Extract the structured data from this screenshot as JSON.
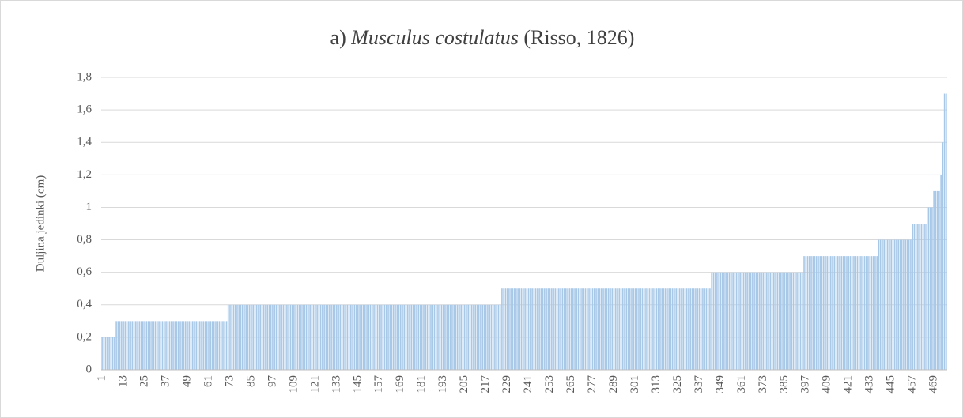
{
  "chart_data": {
    "type": "bar",
    "title": [
      "a)",
      "Musculus costulatus",
      "(Risso, 1826)"
    ],
    "y_label": "Duljina jedinki (cm)",
    "color": "#a8c8e8",
    "ylim": [
      0,
      1.8
    ],
    "yticks": [
      0,
      {
        "value": 0.2,
        "label": "0,2"
      },
      {
        "value": 0.4,
        "label": "0,4"
      },
      {
        "value": 0.6,
        "label": "0,6"
      },
      {
        "value": 0.8,
        "label": "0,8"
      },
      1,
      {
        "value": 1.2,
        "label": "1,2"
      },
      {
        "value": 1.4,
        "label": "1,4"
      },
      {
        "value": 1.6,
        "label": "1,6"
      },
      {
        "value": 1.8,
        "label": "1,8"
      }
    ],
    "grid": true,
    "categories": [
      "1",
      null,
      null,
      null,
      null,
      null,
      null,
      null,
      null,
      null,
      null,
      null,
      "13",
      null,
      null,
      null,
      null,
      null,
      null,
      null,
      null,
      null,
      null,
      null,
      "25",
      null,
      null,
      null,
      null,
      null,
      null,
      null,
      null,
      null,
      null,
      null,
      "37",
      null,
      null,
      null,
      null,
      null,
      null,
      null,
      null,
      null,
      null,
      null,
      "49",
      null,
      null,
      null,
      null,
      null,
      null,
      null,
      null,
      null,
      null,
      null,
      "61",
      null,
      null,
      null,
      null,
      null,
      null,
      null,
      null,
      null,
      null,
      null,
      "73",
      null,
      null,
      null,
      null,
      null,
      null,
      null,
      null,
      null,
      null,
      null,
      "85",
      null,
      null,
      null,
      null,
      null,
      null,
      null,
      null,
      null,
      null,
      null,
      "97",
      null,
      null,
      null,
      null,
      null,
      null,
      null,
      null,
      null,
      null,
      null,
      "109",
      null,
      null,
      null,
      null,
      null,
      null,
      null,
      null,
      null,
      null,
      null,
      "121",
      null,
      null,
      null,
      null,
      null,
      null,
      null,
      null,
      null,
      null,
      null,
      "133",
      null,
      null,
      null,
      null,
      null,
      null,
      null,
      null,
      null,
      null,
      null,
      "145",
      null,
      null,
      null,
      null,
      null,
      null,
      null,
      null,
      null,
      null,
      null,
      "157",
      null,
      null,
      null,
      null,
      null,
      null,
      null,
      null,
      null,
      null,
      null,
      "169",
      null,
      null,
      null,
      null,
      null,
      null,
      null,
      null,
      null,
      null,
      null,
      "181",
      null,
      null,
      null,
      null,
      null,
      null,
      null,
      null,
      null,
      null,
      null,
      "193",
      null,
      null,
      null,
      null,
      null,
      null,
      null,
      null,
      null,
      null,
      null,
      "205",
      null,
      null,
      null,
      null,
      null,
      null,
      null,
      null,
      null,
      null,
      null,
      "217",
      null,
      null,
      null,
      null,
      null,
      null,
      null,
      null,
      null,
      null,
      null,
      "229",
      null,
      null,
      null,
      null,
      null,
      null,
      null,
      null,
      null,
      null,
      null,
      "241",
      null,
      null,
      null,
      null,
      null,
      null,
      null,
      null,
      null,
      null,
      null,
      "253",
      null,
      null,
      null,
      null,
      null,
      null,
      null,
      null,
      null,
      null,
      null,
      "265",
      null,
      null,
      null,
      null,
      null,
      null,
      null,
      null,
      null,
      null,
      null,
      "277",
      null,
      null,
      null,
      null,
      null,
      null,
      null,
      null,
      null,
      null,
      null,
      "289",
      null,
      null,
      null,
      null,
      null,
      null,
      null,
      null,
      null,
      null,
      null,
      "301",
      null,
      null,
      null,
      null,
      null,
      null,
      null,
      null,
      null,
      null,
      null,
      "313",
      null,
      null,
      null,
      null,
      null,
      null,
      null,
      null,
      null,
      null,
      null,
      "325",
      null,
      null,
      null,
      null,
      null,
      null,
      null,
      null,
      null,
      null,
      null,
      "337",
      null,
      null,
      null,
      null,
      null,
      null,
      null,
      null,
      null,
      null,
      null,
      "349",
      null,
      null,
      null,
      null,
      null,
      null,
      null,
      null,
      null,
      null,
      null,
      "361",
      null,
      null,
      null,
      null,
      null,
      null,
      null,
      null,
      null,
      null,
      null,
      "373",
      null,
      null,
      null,
      null,
      null,
      null,
      null,
      null,
      null,
      null,
      null,
      "385",
      null,
      null,
      null,
      null,
      null,
      null,
      null,
      null,
      null,
      null,
      null,
      "397",
      null,
      null,
      null,
      null,
      null,
      null,
      null,
      null,
      null,
      null,
      null,
      "409",
      null,
      null,
      null,
      null,
      null,
      null,
      null,
      null,
      null,
      null,
      null,
      "421",
      null,
      null,
      null,
      null,
      null,
      null,
      null,
      null,
      null,
      null,
      null,
      "433",
      null,
      null,
      null,
      null,
      null,
      null,
      null,
      null,
      null,
      null,
      null,
      "445",
      null,
      null,
      null,
      null,
      null,
      null,
      null,
      null,
      null,
      null,
      null,
      "457",
      null,
      null,
      null,
      null,
      null,
      null,
      null,
      null,
      null,
      null,
      null,
      "469",
      null,
      null,
      null,
      null,
      null,
      null,
      null
    ],
    "values": [
      0.2,
      0.2,
      0.2,
      0.2,
      0.2,
      0.2,
      0.2,
      0.2,
      0.3,
      0.3,
      0.3,
      0.3,
      0.3,
      0.3,
      0.3,
      0.3,
      0.3,
      0.3,
      0.3,
      0.3,
      0.3,
      0.3,
      0.3,
      0.3,
      0.3,
      0.3,
      0.3,
      0.3,
      0.3,
      0.3,
      0.3,
      0.3,
      0.3,
      0.3,
      0.3,
      0.3,
      0.3,
      0.3,
      0.3,
      0.3,
      0.3,
      0.3,
      0.3,
      0.3,
      0.3,
      0.3,
      0.3,
      0.3,
      0.3,
      0.3,
      0.3,
      0.3,
      0.3,
      0.3,
      0.3,
      0.3,
      0.3,
      0.3,
      0.3,
      0.3,
      0.3,
      0.3,
      0.3,
      0.3,
      0.3,
      0.3,
      0.3,
      0.3,
      0.3,
      0.3,
      0.3,
      0.4,
      0.4,
      0.4,
      0.4,
      0.4,
      0.4,
      0.4,
      0.4,
      0.4,
      0.4,
      0.4,
      0.4,
      0.4,
      0.4,
      0.4,
      0.4,
      0.4,
      0.4,
      0.4,
      0.4,
      0.4,
      0.4,
      0.4,
      0.4,
      0.4,
      0.4,
      0.4,
      0.4,
      0.4,
      0.4,
      0.4,
      0.4,
      0.4,
      0.4,
      0.4,
      0.4,
      0.4,
      0.4,
      0.4,
      0.4,
      0.4,
      0.4,
      0.4,
      0.4,
      0.4,
      0.4,
      0.4,
      0.4,
      0.4,
      0.4,
      0.4,
      0.4,
      0.4,
      0.4,
      0.4,
      0.4,
      0.4,
      0.4,
      0.4,
      0.4,
      0.4,
      0.4,
      0.4,
      0.4,
      0.4,
      0.4,
      0.4,
      0.4,
      0.4,
      0.4,
      0.4,
      0.4,
      0.4,
      0.4,
      0.4,
      0.4,
      0.4,
      0.4,
      0.4,
      0.4,
      0.4,
      0.4,
      0.4,
      0.4,
      0.4,
      0.4,
      0.4,
      0.4,
      0.4,
      0.4,
      0.4,
      0.4,
      0.4,
      0.4,
      0.4,
      0.4,
      0.4,
      0.4,
      0.4,
      0.4,
      0.4,
      0.4,
      0.4,
      0.4,
      0.4,
      0.4,
      0.4,
      0.4,
      0.4,
      0.4,
      0.4,
      0.4,
      0.4,
      0.4,
      0.4,
      0.4,
      0.4,
      0.4,
      0.4,
      0.4,
      0.4,
      0.4,
      0.4,
      0.4,
      0.4,
      0.4,
      0.4,
      0.4,
      0.4,
      0.4,
      0.4,
      0.4,
      0.4,
      0.4,
      0.4,
      0.4,
      0.4,
      0.4,
      0.4,
      0.4,
      0.4,
      0.4,
      0.4,
      0.4,
      0.4,
      0.4,
      0.4,
      0.4,
      0.4,
      0.4,
      0.4,
      0.4,
      0.4,
      0.4,
      0.5,
      0.5,
      0.5,
      0.5,
      0.5,
      0.5,
      0.5,
      0.5,
      0.5,
      0.5,
      0.5,
      0.5,
      0.5,
      0.5,
      0.5,
      0.5,
      0.5,
      0.5,
      0.5,
      0.5,
      0.5,
      0.5,
      0.5,
      0.5,
      0.5,
      0.5,
      0.5,
      0.5,
      0.5,
      0.5,
      0.5,
      0.5,
      0.5,
      0.5,
      0.5,
      0.5,
      0.5,
      0.5,
      0.5,
      0.5,
      0.5,
      0.5,
      0.5,
      0.5,
      0.5,
      0.5,
      0.5,
      0.5,
      0.5,
      0.5,
      0.5,
      0.5,
      0.5,
      0.5,
      0.5,
      0.5,
      0.5,
      0.5,
      0.5,
      0.5,
      0.5,
      0.5,
      0.5,
      0.5,
      0.5,
      0.5,
      0.5,
      0.5,
      0.5,
      0.5,
      0.5,
      0.5,
      0.5,
      0.5,
      0.5,
      0.5,
      0.5,
      0.5,
      0.5,
      0.5,
      0.5,
      0.5,
      0.5,
      0.5,
      0.5,
      0.5,
      0.5,
      0.5,
      0.5,
      0.5,
      0.5,
      0.5,
      0.5,
      0.5,
      0.5,
      0.5,
      0.5,
      0.5,
      0.5,
      0.5,
      0.5,
      0.5,
      0.5,
      0.5,
      0.5,
      0.5,
      0.5,
      0.5,
      0.5,
      0.5,
      0.5,
      0.5,
      0.5,
      0.5,
      0.5,
      0.5,
      0.5,
      0.5,
      0.6,
      0.6,
      0.6,
      0.6,
      0.6,
      0.6,
      0.6,
      0.6,
      0.6,
      0.6,
      0.6,
      0.6,
      0.6,
      0.6,
      0.6,
      0.6,
      0.6,
      0.6,
      0.6,
      0.6,
      0.6,
      0.6,
      0.6,
      0.6,
      0.6,
      0.6,
      0.6,
      0.6,
      0.6,
      0.6,
      0.6,
      0.6,
      0.6,
      0.6,
      0.6,
      0.6,
      0.6,
      0.6,
      0.6,
      0.6,
      0.6,
      0.6,
      0.6,
      0.6,
      0.6,
      0.6,
      0.6,
      0.6,
      0.6,
      0.6,
      0.6,
      0.6,
      0.7,
      0.7,
      0.7,
      0.7,
      0.7,
      0.7,
      0.7,
      0.7,
      0.7,
      0.7,
      0.7,
      0.7,
      0.7,
      0.7,
      0.7,
      0.7,
      0.7,
      0.7,
      0.7,
      0.7,
      0.7,
      0.7,
      0.7,
      0.7,
      0.7,
      0.7,
      0.7,
      0.7,
      0.7,
      0.7,
      0.7,
      0.7,
      0.7,
      0.7,
      0.7,
      0.7,
      0.7,
      0.7,
      0.7,
      0.7,
      0.7,
      0.7,
      0.8,
      0.8,
      0.8,
      0.8,
      0.8,
      0.8,
      0.8,
      0.8,
      0.8,
      0.8,
      0.8,
      0.8,
      0.8,
      0.8,
      0.8,
      0.8,
      0.8,
      0.8,
      0.8,
      0.9,
      0.9,
      0.9,
      0.9,
      0.9,
      0.9,
      0.9,
      0.9,
      0.9,
      1,
      1,
      1,
      1.1,
      1.1,
      1.1,
      1.1,
      1.2,
      1.4,
      1.7,
      1.7
    ]
  }
}
